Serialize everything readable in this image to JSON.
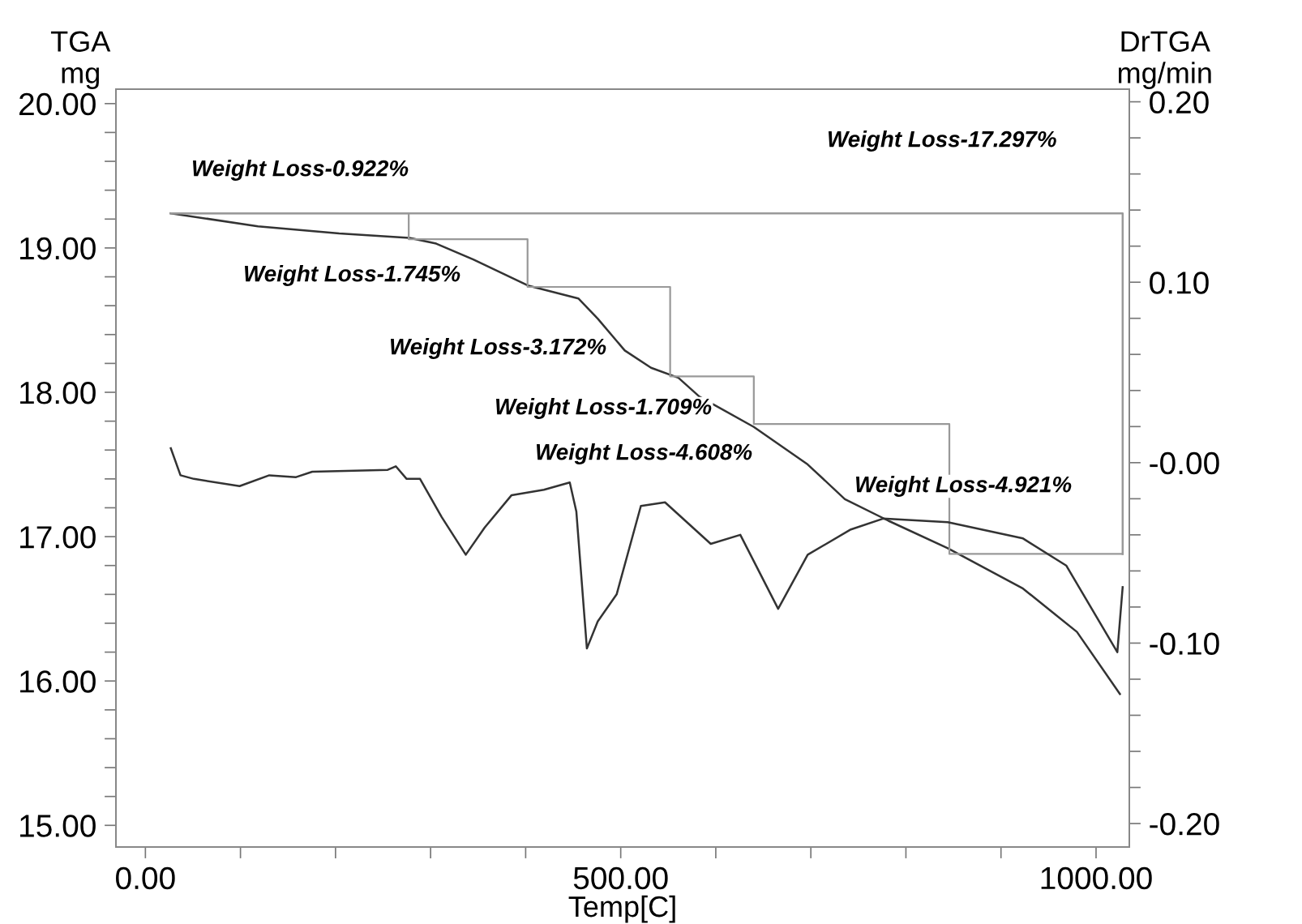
{
  "chart_data": {
    "type": "line",
    "xlabel": "Temp[C]",
    "ylabel": "TGA\nmg",
    "y2label": "DrTGA\nmg/min",
    "xlim": [
      -31,
      1035
    ],
    "ylim": [
      14.85,
      20.1
    ],
    "y2lim": [
      -0.213,
      0.207
    ],
    "xticks": [
      {
        "value": 0,
        "label": "0.00"
      },
      {
        "value": 100,
        "label": null
      },
      {
        "value": 200,
        "label": null
      },
      {
        "value": 300,
        "label": null
      },
      {
        "value": 400,
        "label": null
      },
      {
        "value": 500,
        "label": "500.00"
      },
      {
        "value": 600,
        "label": null
      },
      {
        "value": 700,
        "label": null
      },
      {
        "value": 800,
        "label": null
      },
      {
        "value": 900,
        "label": null
      },
      {
        "value": 1000,
        "label": "1000.00"
      }
    ],
    "yticks": [
      {
        "value": 15,
        "label": "15.00"
      },
      {
        "value": 15.2,
        "label": null
      },
      {
        "value": 15.4,
        "label": null
      },
      {
        "value": 15.6,
        "label": null
      },
      {
        "value": 15.8,
        "label": null
      },
      {
        "value": 16,
        "label": "16.00"
      },
      {
        "value": 16.2,
        "label": null
      },
      {
        "value": 16.4,
        "label": null
      },
      {
        "value": 16.6,
        "label": null
      },
      {
        "value": 16.8,
        "label": null
      },
      {
        "value": 17,
        "label": "17.00"
      },
      {
        "value": 17.2,
        "label": null
      },
      {
        "value": 17.4,
        "label": null
      },
      {
        "value": 17.6,
        "label": null
      },
      {
        "value": 17.8,
        "label": null
      },
      {
        "value": 18,
        "label": "18.00"
      },
      {
        "value": 18.2,
        "label": null
      },
      {
        "value": 18.4,
        "label": null
      },
      {
        "value": 18.6,
        "label": null
      },
      {
        "value": 18.8,
        "label": null
      },
      {
        "value": 19,
        "label": "19.00"
      },
      {
        "value": 19.2,
        "label": null
      },
      {
        "value": 19.4,
        "label": null
      },
      {
        "value": 19.6,
        "label": null
      },
      {
        "value": 19.8,
        "label": null
      },
      {
        "value": 20,
        "label": "20.00"
      }
    ],
    "y2ticks": [
      {
        "value": -0.2,
        "label": "-0.20"
      },
      {
        "value": -0.18,
        "label": null
      },
      {
        "value": -0.16,
        "label": null
      },
      {
        "value": -0.14,
        "label": null
      },
      {
        "value": -0.12,
        "label": null
      },
      {
        "value": -0.1,
        "label": "-0.10"
      },
      {
        "value": -0.08,
        "label": null
      },
      {
        "value": -0.06,
        "label": null
      },
      {
        "value": -0.04,
        "label": null
      },
      {
        "value": -0.02,
        "label": null
      },
      {
        "value": 0,
        "label": "-0.00"
      },
      {
        "value": 0.02,
        "label": null
      },
      {
        "value": 0.04,
        "label": null
      },
      {
        "value": 0.06,
        "label": null
      },
      {
        "value": 0.08,
        "label": null
      },
      {
        "value": 0.1,
        "label": "0.10"
      },
      {
        "value": 0.12,
        "label": null
      },
      {
        "value": 0.14,
        "label": null
      },
      {
        "value": 0.16,
        "label": null
      },
      {
        "value": 0.18,
        "label": null
      },
      {
        "value": 0.2,
        "label": "0.20"
      }
    ],
    "grid": false,
    "legend": false,
    "series": [
      {
        "color": "#333333",
        "x": [
          26.7,
          118.4,
          203.9,
          277.5,
          305.9,
          344.9,
          402.2,
          455.4,
          475.8,
          504.2,
          531.9,
          560.7,
          582.8,
          640.0,
          696.7,
          735.8,
          781.6,
          844.0,
          923.2,
          979.9,
          1025.1
        ],
        "values": [
          19.24,
          19.15,
          19.1,
          19.07,
          19.03,
          18.92,
          18.74,
          18.65,
          18.51,
          18.29,
          18.17,
          18.1,
          17.97,
          17.76,
          17.5,
          17.26,
          17.11,
          16.92,
          16.64,
          16.34,
          15.91
        ]
      },
      {
        "axis": "y2",
        "color": "#333333",
        "x": [
          26.7,
          36.9,
          51.0,
          99.1,
          130.3,
          158.5,
          175.5,
          254.9,
          263.4,
          274.8,
          288.9,
          311.5,
          337.0,
          356.8,
          385.2,
          419.2,
          446.4,
          453.3,
          464.4,
          475.8,
          495.7,
          521.2,
          546.6,
          594.7,
          625.8,
          665.6,
          696.7,
          742.1,
          776.0,
          844.0,
          923.2,
          968.6,
          1022.4,
          1028.0
        ],
        "values": [
          0.008,
          -0.007,
          -0.009,
          -0.013,
          -0.007,
          -0.008,
          -0.005,
          -0.004,
          -0.002,
          -0.009,
          -0.009,
          -0.03,
          -0.051,
          -0.036,
          -0.018,
          -0.015,
          -0.011,
          -0.027,
          -0.103,
          -0.088,
          -0.073,
          -0.024,
          -0.022,
          -0.045,
          -0.04,
          -0.081,
          -0.051,
          -0.037,
          -0.031,
          -0.033,
          -0.042,
          -0.057,
          -0.105,
          -0.069
        ]
      },
      {
        "type": "step",
        "color": "#999999",
        "x": [
          26.7,
          277,
          402,
          552,
          640,
          845.7,
          1028
        ],
        "values": [
          19.24,
          19.06,
          18.73,
          18.11,
          17.78,
          16.88,
          16.88
        ]
      },
      {
        "type": "line",
        "color": "#999999",
        "x": [
          26.7,
          1028,
          1028
        ],
        "values": [
          19.24,
          19.24,
          16.88
        ]
      }
    ],
    "annotations": [
      "Weight Loss-0.922%",
      "Weight Loss-1.745%",
      "Weight Loss-3.172%",
      "Weight Loss-1.709%",
      "Weight Loss-4.608%",
      "Weight Loss-4.921%",
      "Weight Loss-17.297%"
    ]
  }
}
